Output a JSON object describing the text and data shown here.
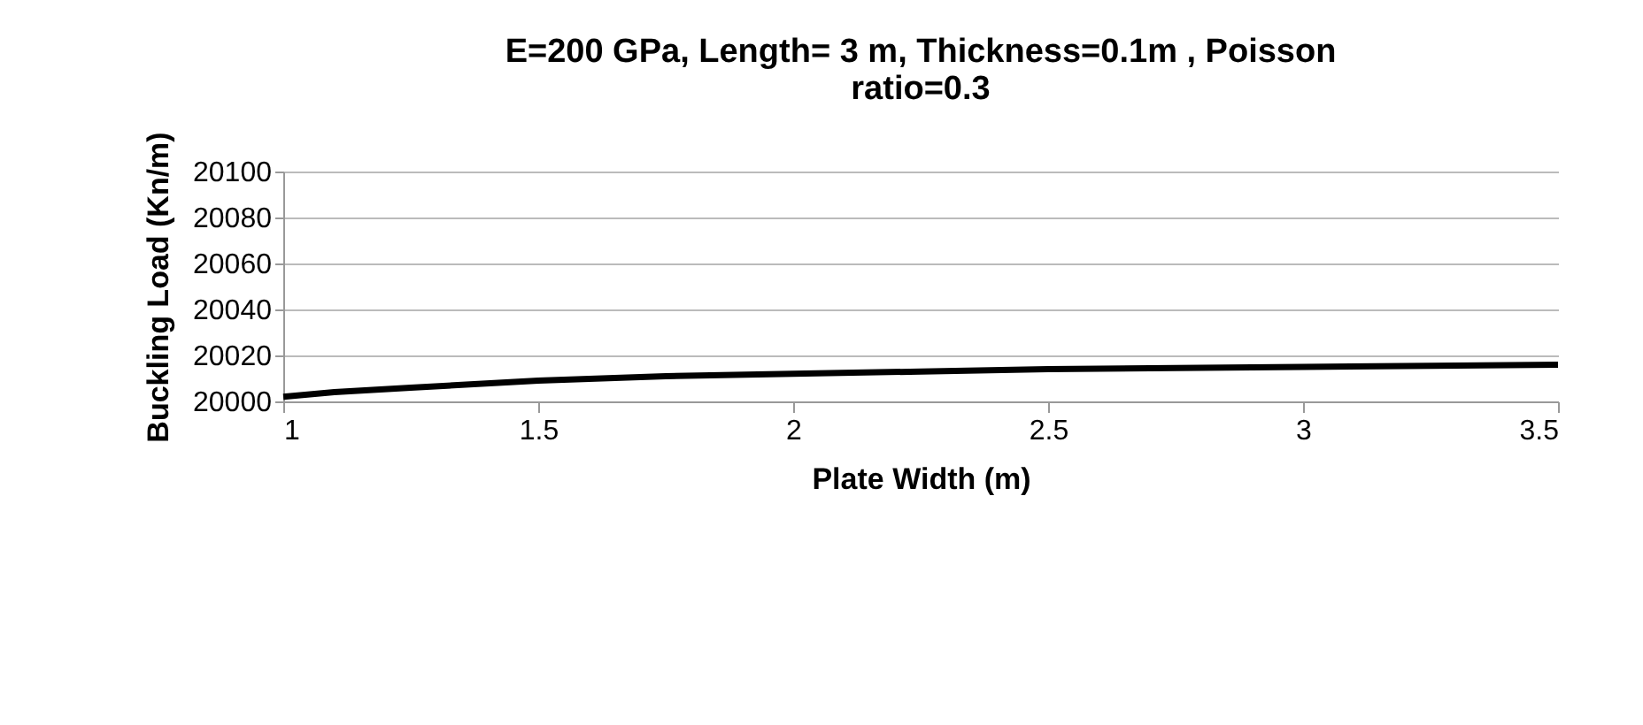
{
  "chart_data": {
    "type": "line",
    "title": "E=200 GPa, Length= 3 m, Thickness=0.1m , Poisson ratio=0.3",
    "xlabel": "Plate Width (m)",
    "ylabel": "Buckling Load (Kn/m)",
    "x": [
      1,
      1.1,
      1.25,
      1.5,
      1.75,
      2,
      2.25,
      2.5,
      2.75,
      3,
      3.25,
      3.5
    ],
    "series": [
      {
        "color": "#000000",
        "values": [
          20002,
          20004,
          20006,
          20009,
          20011,
          20012,
          20013,
          20014,
          20014.5,
          20015,
          20015.5,
          20016
        ]
      }
    ],
    "xlim": [
      1,
      3.5
    ],
    "xticks": [
      1,
      1.5,
      2,
      2.5,
      3,
      3.5
    ],
    "ylim": [
      20000,
      20100
    ],
    "yticks": [
      20000,
      20020,
      20040,
      20060,
      20080,
      20100
    ],
    "grid": "y",
    "legend": false,
    "marker": "none",
    "line_style": "solid"
  }
}
